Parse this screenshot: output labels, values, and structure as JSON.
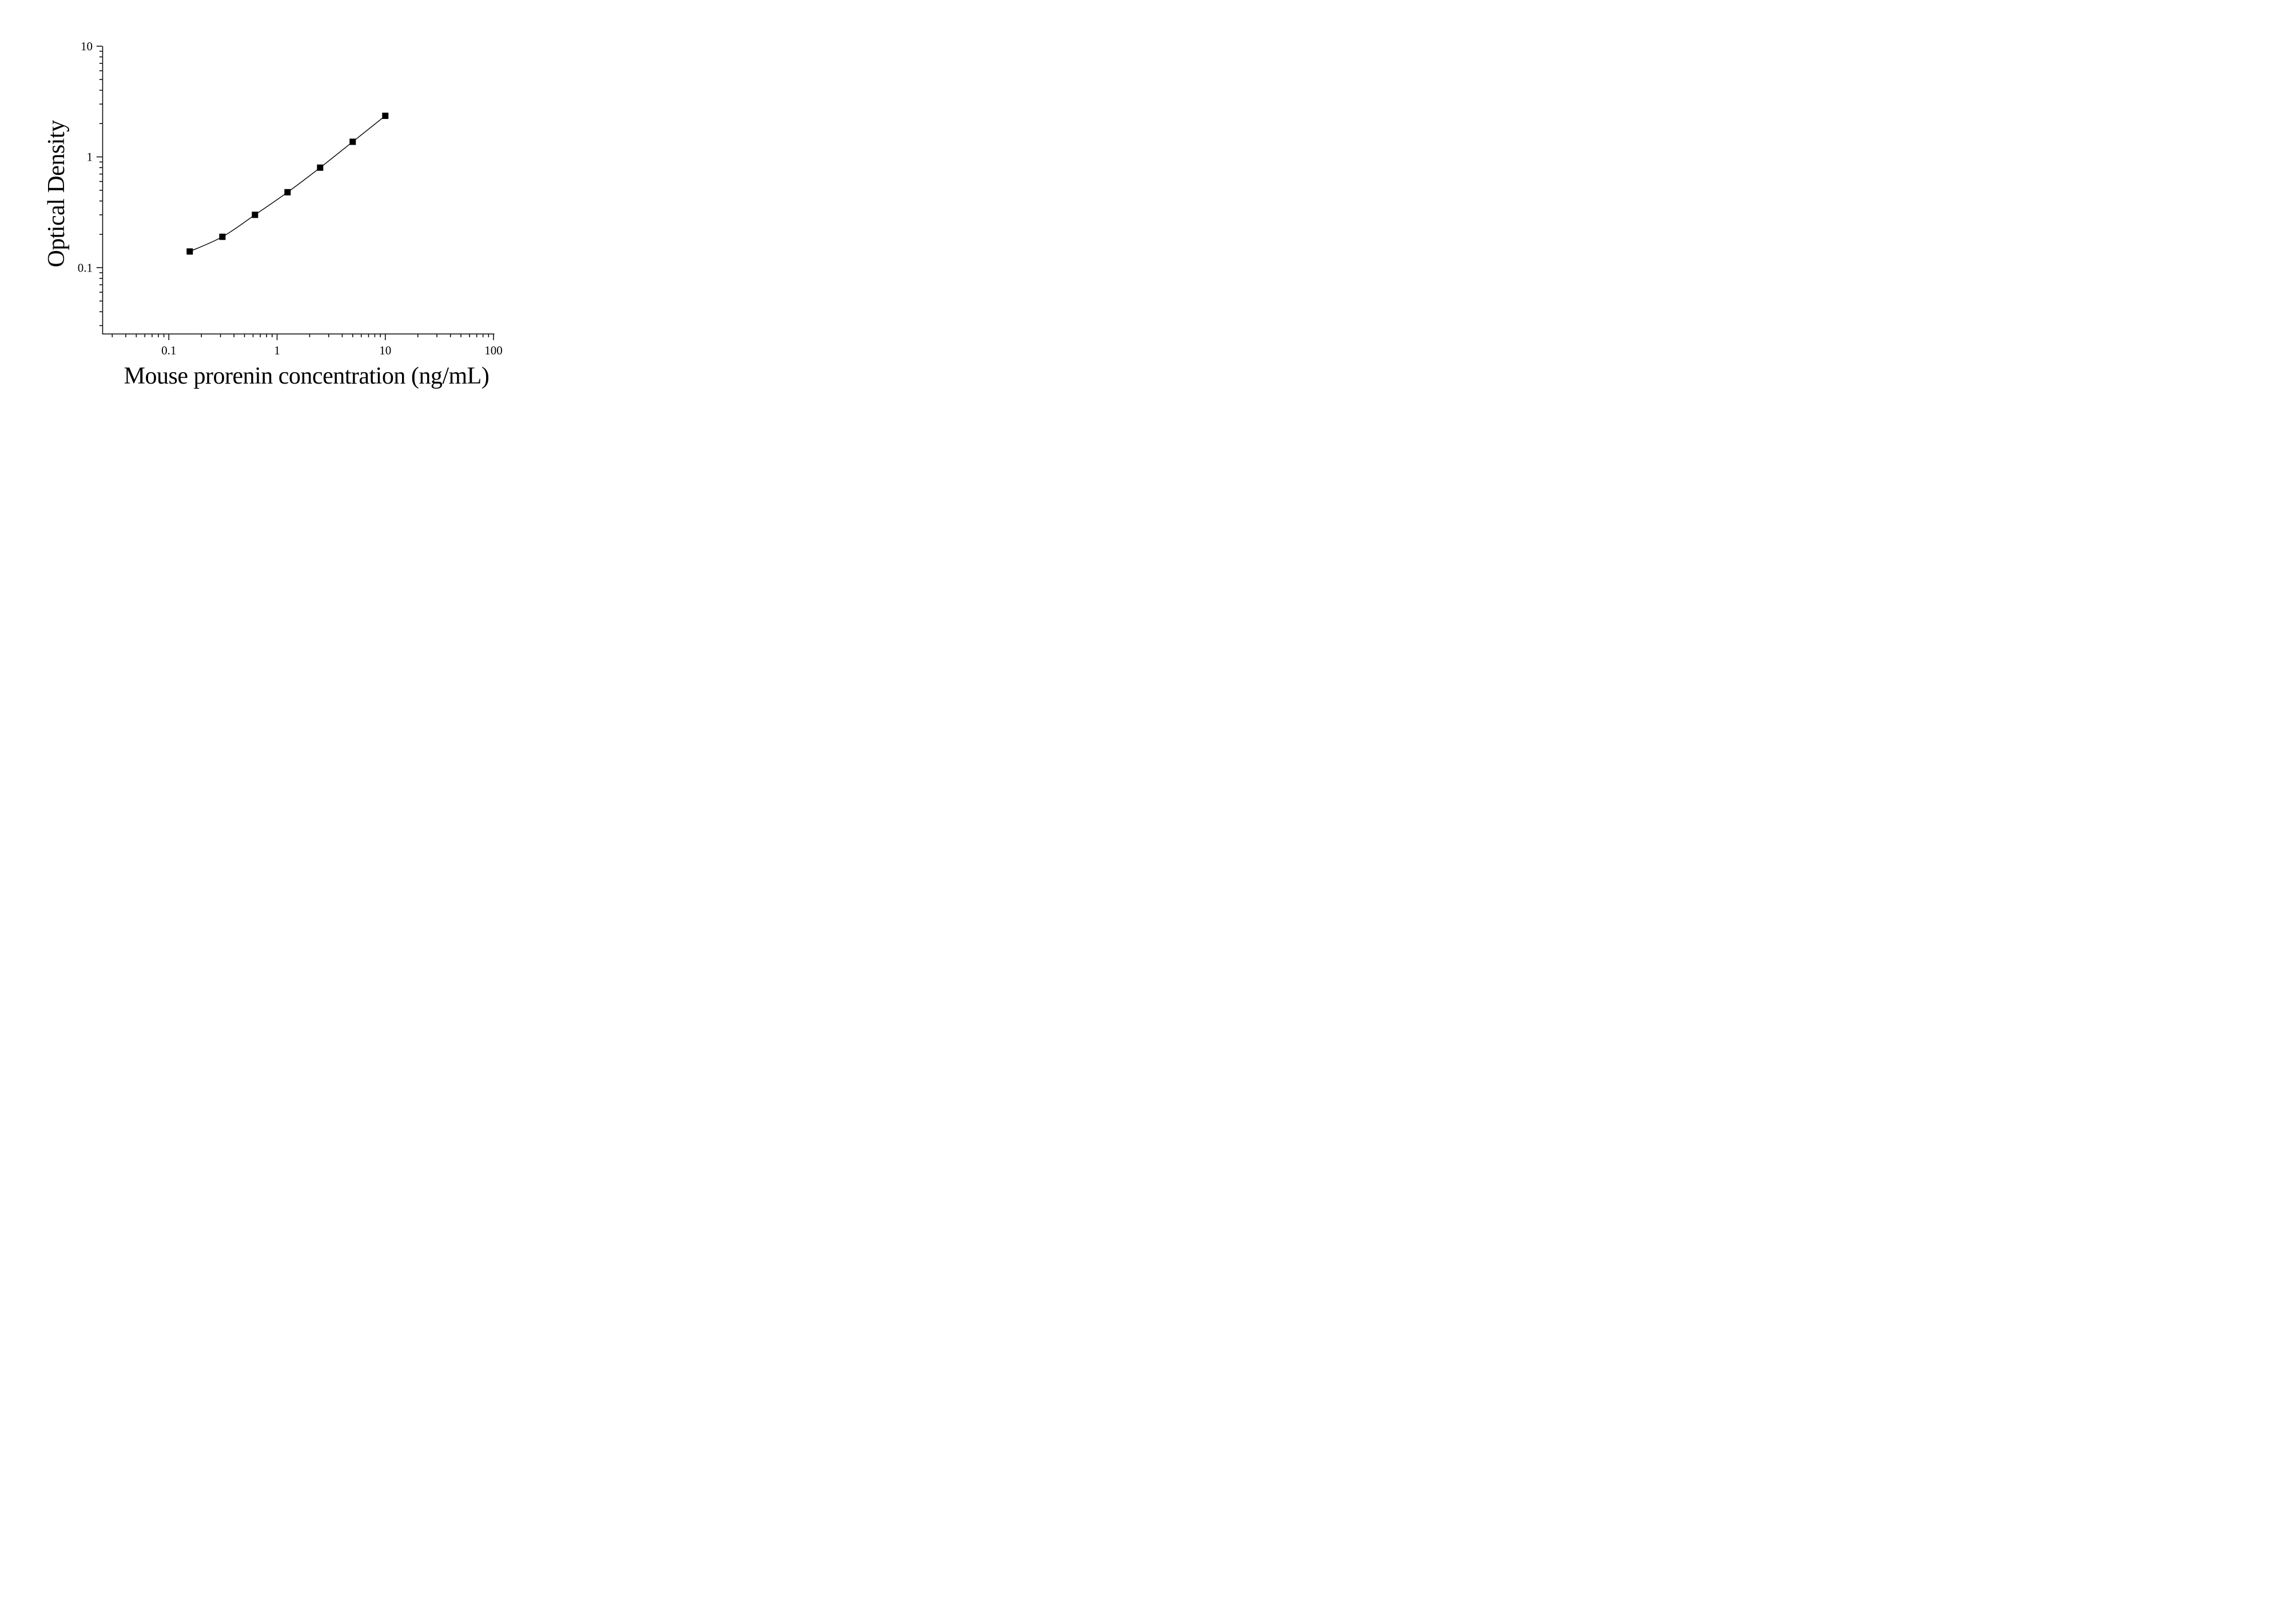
{
  "figure": {
    "background": "#ffffff",
    "ink_color": "#000000"
  },
  "chart_data": {
    "type": "scatter",
    "title": "",
    "xlabel": "Mouse prorenin concentration (ng/mL)",
    "ylabel": "Optical Density",
    "x_scale": "log",
    "y_scale": "log",
    "x_range": [
      0.0245,
      100
    ],
    "y_range": [
      0.025,
      10
    ],
    "x_ticks": {
      "values": [
        0.1,
        1,
        10,
        100
      ],
      "labels": [
        "0.1",
        "1",
        "10",
        "100"
      ]
    },
    "y_ticks": {
      "values": [
        10,
        1,
        0.1
      ],
      "labels": [
        "10",
        "1",
        "0.1"
      ]
    },
    "minor_ticks": "log-decade-multiples-2-to-9",
    "tick_direction": "out",
    "grid": false,
    "legend": "none",
    "frame": "left-and-bottom-axes-only",
    "series": [
      {
        "name": "mouse-prorenin-standard-curve",
        "marker": "filled-square",
        "line_style": "solid",
        "color": "#000000",
        "points": [
          {
            "x": 0.156,
            "y": 0.14
          },
          {
            "x": 0.3125,
            "y": 0.19
          },
          {
            "x": 0.625,
            "y": 0.3
          },
          {
            "x": 1.25,
            "y": 0.48
          },
          {
            "x": 2.5,
            "y": 0.8
          },
          {
            "x": 5,
            "y": 1.37
          },
          {
            "x": 10,
            "y": 2.35
          }
        ]
      }
    ]
  }
}
